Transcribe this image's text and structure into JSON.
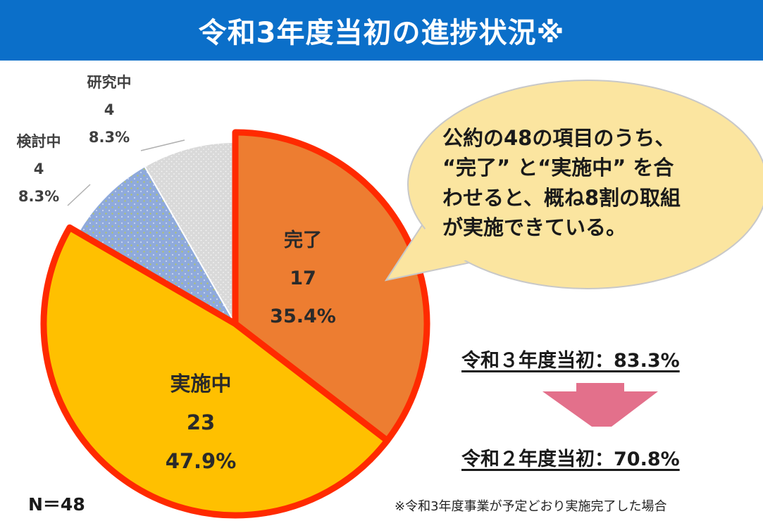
{
  "header": {
    "title": "令和3年度当初の進捗状況※"
  },
  "chart_data": {
    "type": "pie",
    "title": "令和3年度当初の進捗状況※",
    "total_label": "N＝48",
    "slices": [
      {
        "label": "完了",
        "count": "17",
        "percent": "35.4%",
        "value": 35.4,
        "color": "#ed7d31"
      },
      {
        "label": "実施中",
        "count": "23",
        "percent": "47.9%",
        "value": 47.9,
        "color": "#ffc000"
      },
      {
        "label": "検討中",
        "count": "4",
        "percent": "8.3%",
        "value": 8.3,
        "color": "#8faadc"
      },
      {
        "label": "研究中",
        "count": "4",
        "percent": "8.3%",
        "value": 8.3,
        "color": "#d9d9d9"
      }
    ]
  },
  "callout": {
    "lines": [
      "公約の48の項目のうち、",
      "“完了” と“実施中” を合",
      "わせると、概ね8割の取組",
      "が実施できている。"
    ],
    "color": "#fbe5a0"
  },
  "comparison": {
    "r3": "令和３年度当初：83.3%",
    "r2": "令和２年度当初：70.8%",
    "arrow_color": "#e0607e"
  },
  "footnote": "※令和3年度事業が予定どおり実施完了した場合"
}
